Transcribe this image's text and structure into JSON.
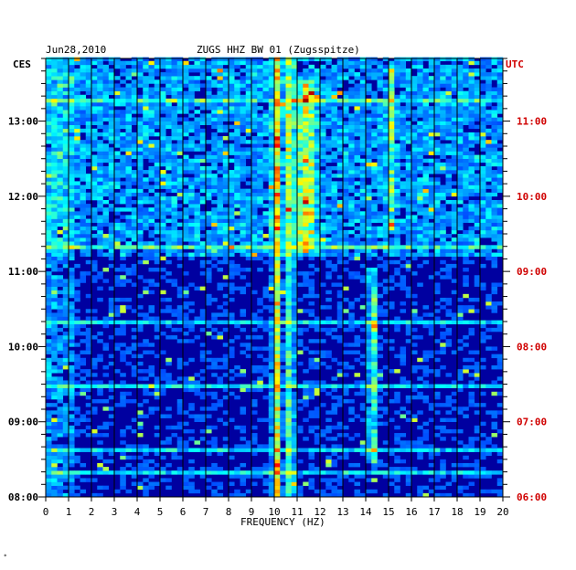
{
  "header": {
    "date": "Jun28,2010",
    "title": "ZUGS HHZ BW 01 (Zugsspitze)"
  },
  "left_axis_label": "CES",
  "right_axis_label": "UTC",
  "footer_mark": "*",
  "colors": {
    "utc_text": "#d00000",
    "background": "#ffffff",
    "plot_base": "#0000a0"
  },
  "chart_data": {
    "type": "heatmap",
    "xlabel": "FREQUENCY (HZ)",
    "x_ticks": [
      "0",
      "1",
      "2",
      "3",
      "4",
      "5",
      "6",
      "7",
      "8",
      "9",
      "10",
      "11",
      "12",
      "13",
      "14",
      "15",
      "16",
      "17",
      "18",
      "19",
      "20"
    ],
    "xlim": [
      0,
      20
    ],
    "y_ticks_left": [
      "13:00",
      "12:00",
      "11:00",
      "10:00",
      "09:00",
      "08:00"
    ],
    "y_ticks_right": [
      "11:00",
      "10:00",
      "09:00",
      "08:00",
      "07:00",
      "06:00"
    ],
    "ylim_left": [
      "08:00",
      "13:50"
    ],
    "ylim_right": [
      "06:00",
      "11:50"
    ],
    "colormap": "jet",
    "grid": true,
    "features": [
      {
        "freq_hz": 10.1,
        "note": "persistent narrow band"
      },
      {
        "freq_hz": 10.7,
        "note": "persistent narrow band"
      },
      {
        "freq_hz": 11.4,
        "note": "strong band between 11:15 and 13:30 CES"
      },
      {
        "freq_hz": 14.3,
        "note": "band between 08:30 and 11:00 CES"
      },
      {
        "freq_hz": 15.1,
        "note": "band between 11:30 and 13:40 CES"
      }
    ]
  }
}
